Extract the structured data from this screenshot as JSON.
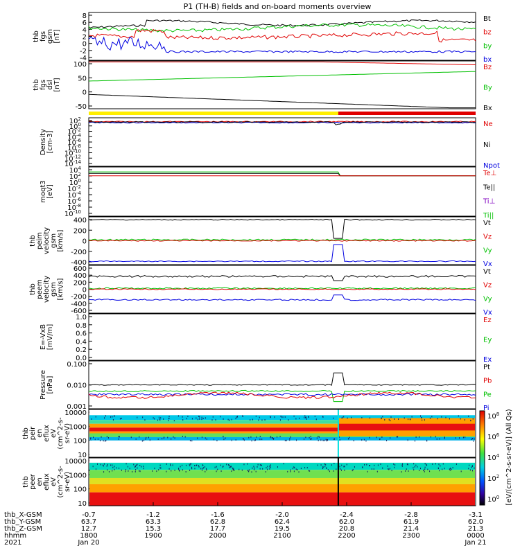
{
  "title": "P1 (TH-B) fields and on-board moments overview",
  "chart_data": [
    {
      "id": "fgs",
      "type": "line",
      "ylabel_lines": [
        "thb",
        "fgs",
        "gsm",
        "[nT]"
      ],
      "ylim": [
        -4,
        8
      ],
      "yticks": [
        8,
        6,
        4,
        2,
        0,
        -2,
        -4
      ],
      "legend": [
        {
          "label": "Bt",
          "color": "#000000"
        },
        {
          "label": "bz",
          "color": "#e00000"
        },
        {
          "label": "by",
          "color": "#00c000"
        },
        {
          "label": "bx",
          "color": "#0000e0"
        }
      ]
    },
    {
      "id": "fgs_dsl",
      "type": "line",
      "ylabel_lines": [
        "thb",
        "fgs",
        "dsl",
        "[nT]"
      ],
      "ylim": [
        -100,
        100
      ],
      "yticks": [
        100,
        50,
        0,
        -50
      ],
      "legend": [
        {
          "label": "Bz",
          "color": "#e00000"
        },
        {
          "label": "By",
          "color": "#00c000"
        },
        {
          "label": "Bx",
          "color": "#000000"
        }
      ]
    },
    {
      "id": "density",
      "type": "line",
      "ylabel_lines": [
        "Density",
        "[cm-3]"
      ],
      "yticks": [
        "10^2",
        "10^0",
        "10^-2",
        "10^-4",
        "10^-6",
        "10^-8",
        "10^-10",
        "10^-12",
        "10^-14"
      ],
      "legend": [
        {
          "label": "Ne",
          "color": "#e00000"
        },
        {
          "label": "Ni",
          "color": "#000000"
        },
        {
          "label": "Npot",
          "color": "#0000e0"
        }
      ]
    },
    {
      "id": "temp",
      "type": "line",
      "ylabel_lines": [
        "moqt3",
        "[eV]"
      ],
      "yticks": [
        "10^4",
        "10^2",
        "10^0",
        "10^-2",
        "10^-4",
        "10^-6",
        "10^-8",
        "10^-10"
      ],
      "legend": [
        {
          "label": "Te⊥",
          "color": "#e00000"
        },
        {
          "label": "Te||",
          "color": "#000000"
        },
        {
          "label": "Ti⊥",
          "color": "#8000c0"
        },
        {
          "label": "Ti||",
          "color": "#00c000"
        }
      ]
    },
    {
      "id": "peim",
      "type": "line",
      "ylabel_lines": [
        "thb",
        "peim",
        "velocity",
        "gsm",
        "[km/s]"
      ],
      "ylim": [
        -400,
        400
      ],
      "yticks": [
        400,
        200,
        0,
        -200,
        -400
      ],
      "legend": [
        {
          "label": "Vt",
          "color": "#000000"
        },
        {
          "label": "Vz",
          "color": "#e00000"
        },
        {
          "label": "Vy",
          "color": "#00c000"
        },
        {
          "label": "Vx",
          "color": "#0000e0"
        }
      ]
    },
    {
      "id": "peem",
      "type": "line",
      "ylabel_lines": [
        "thb",
        "peem",
        "velocity",
        "gsm",
        "[km/s]"
      ],
      "ylim": [
        -600,
        600
      ],
      "yticks": [
        600,
        400,
        200,
        0,
        -200,
        -400,
        -600
      ],
      "legend": [
        {
          "label": "Vt",
          "color": "#000000"
        },
        {
          "label": "Vz",
          "color": "#e00000"
        },
        {
          "label": "Vy",
          "color": "#00c000"
        },
        {
          "label": "Vx",
          "color": "#0000e0"
        }
      ]
    },
    {
      "id": "efield",
      "type": "line",
      "ylabel_lines": [
        "E=-VxB",
        "[mV/m]"
      ],
      "ylim": [
        0,
        1
      ],
      "yticks": [
        "1.0",
        "0.8",
        "0.6",
        "0.4",
        "0.2",
        "0.0"
      ],
      "legend": [
        {
          "label": "Ez",
          "color": "#e00000"
        },
        {
          "label": "Ey",
          "color": "#00c000"
        },
        {
          "label": "Ex",
          "color": "#0000e0"
        }
      ]
    },
    {
      "id": "pressure",
      "type": "line",
      "ylabel_lines": [
        "Pressure",
        "[nPa]"
      ],
      "yticks": [
        "0.100",
        "0.010",
        "0.001"
      ],
      "legend": [
        {
          "label": "Pt",
          "color": "#000000"
        },
        {
          "label": "Pb",
          "color": "#e00000"
        },
        {
          "label": "Pe",
          "color": "#00c000"
        },
        {
          "label": "Pi",
          "color": "#0000e0"
        }
      ]
    },
    {
      "id": "peir",
      "type": "heatmap",
      "ylabel_lines": [
        "thb",
        "peir",
        "en",
        "eflux",
        "eV",
        "(cm^2-s-",
        "sr-eV)"
      ],
      "yticks": [
        "10000",
        "1000",
        "100",
        "10"
      ]
    },
    {
      "id": "peer",
      "type": "heatmap",
      "ylabel_lines": [
        "thb",
        "peer",
        "en",
        "eflux",
        "eV",
        "(cm^2-s-",
        "sr-eV)"
      ],
      "yticks": [
        "10000",
        "1000",
        "100",
        "10"
      ]
    }
  ],
  "colorbar": {
    "label": "[eV/(cm^2-s-sr-eV)] (All Qs)",
    "ticks": [
      "10^8",
      "10^6",
      "10^4",
      "10^2",
      "10^0"
    ]
  },
  "x_axis": {
    "rows": [
      {
        "label": "thb_X-GSM",
        "values": [
          "-0.7",
          "-1.2",
          "-1.6",
          "-2.0",
          "-2.4",
          "-2.8",
          "-3.1"
        ]
      },
      {
        "label": "thb_Y-GSM",
        "values": [
          "63.7",
          "63.3",
          "62.8",
          "62.4",
          "62.0",
          "61.9",
          "62.0"
        ]
      },
      {
        "label": "thb_Z-GSM",
        "values": [
          "12.7",
          "15.3",
          "17.7",
          "19.5",
          "20.8",
          "21.4",
          "21.3"
        ]
      },
      {
        "label": "hhmm",
        "values": [
          "1800",
          "1900",
          "2000",
          "2100",
          "2200",
          "2300",
          "0000"
        ]
      },
      {
        "label": "2021",
        "values": [
          "Jan 20",
          "",
          "",
          "",
          "",
          "",
          "Jan 21"
        ]
      }
    ]
  },
  "mode_bar": {
    "colors": [
      "#ffee00",
      "#e00000"
    ]
  }
}
